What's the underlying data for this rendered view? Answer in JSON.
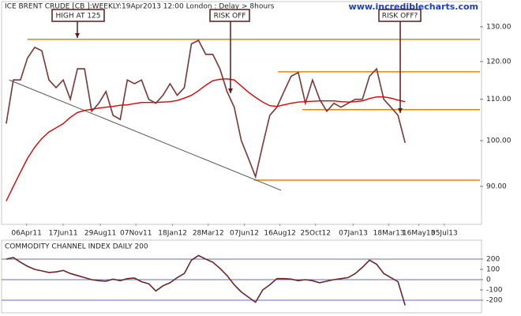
{
  "chart_data": [
    {
      "type": "line",
      "title": "ICE BRENT CRUDE [CB ]:WEEKLY:19Apr2013 12:00 London : Delay > 8hours",
      "source": "www.incrediblecharts.com",
      "log_y": true,
      "xlim": [
        "2011-02-19",
        "2013-09-13"
      ],
      "ylim": [
        82.6,
        134.8
      ],
      "yticks": [
        {
          "value": 90,
          "label": "90.00"
        },
        {
          "value": 100,
          "label": "100.00"
        },
        {
          "value": 110,
          "label": "110.00"
        },
        {
          "value": 120,
          "label": "120.00"
        },
        {
          "value": 130,
          "label": "130.00"
        }
      ],
      "xticks": [
        {
          "value": "2011-04-06",
          "label": "06Apr11"
        },
        {
          "value": "2011-06-17",
          "label": "17Jun11"
        },
        {
          "value": "2011-08-29",
          "label": "29Aug11"
        },
        {
          "value": "2011-11-07",
          "label": "07Nov11"
        },
        {
          "value": "2012-01-18",
          "label": "18Jan12"
        },
        {
          "value": "2012-03-28",
          "label": "28Mar12"
        },
        {
          "value": "2012-06-07",
          "label": "07Jun12"
        },
        {
          "value": "2012-08-16",
          "label": "16Aug12"
        },
        {
          "value": "2012-10-25",
          "label": "25Oct12"
        },
        {
          "value": "2013-01-07",
          "label": "07Jan13"
        },
        {
          "value": "2013-03-18",
          "label": "18Mar13"
        },
        {
          "value": "2013-05-16",
          "label": "16May13"
        },
        {
          "value": "2013-07-05",
          "label": "05Jul13"
        }
      ],
      "x": [
        "2011-02-25",
        "2011-03-11",
        "2011-03-25",
        "2011-04-08",
        "2011-04-22",
        "2011-05-06",
        "2011-05-20",
        "2011-06-03",
        "2011-06-17",
        "2011-07-01",
        "2011-07-15",
        "2011-07-29",
        "2011-08-12",
        "2011-08-26",
        "2011-09-09",
        "2011-09-23",
        "2011-10-07",
        "2011-10-21",
        "2011-11-04",
        "2011-11-18",
        "2011-12-02",
        "2011-12-16",
        "2011-12-30",
        "2012-01-13",
        "2012-01-27",
        "2012-02-10",
        "2012-02-24",
        "2012-03-09",
        "2012-03-23",
        "2012-04-06",
        "2012-04-20",
        "2012-05-04",
        "2012-05-18",
        "2012-06-01",
        "2012-06-15",
        "2012-06-29",
        "2012-07-13",
        "2012-07-27",
        "2012-08-10",
        "2012-08-24",
        "2012-09-07",
        "2012-09-21",
        "2012-10-05",
        "2012-10-19",
        "2012-11-02",
        "2012-11-16",
        "2012-11-30",
        "2012-12-14",
        "2012-12-28",
        "2013-01-11",
        "2013-01-25",
        "2013-02-08",
        "2013-02-22",
        "2013-03-08",
        "2013-03-22",
        "2013-04-05",
        "2013-04-19"
      ],
      "series": [
        {
          "color": "#7a3535",
          "values": [
            104,
            115,
            115,
            121,
            124,
            123,
            115,
            113,
            115,
            110,
            118,
            118,
            107,
            109,
            112,
            106,
            105,
            115,
            114,
            115,
            110,
            109,
            111,
            114,
            111,
            113,
            125,
            126,
            122,
            122,
            118,
            112,
            108,
            100,
            96,
            92,
            99,
            106,
            108,
            112,
            116,
            117,
            109,
            115,
            110,
            107,
            109,
            108,
            109,
            110,
            110,
            116,
            118,
            110,
            108,
            106,
            99.5
          ]
        },
        {
          "color": "#e00000",
          "values": [
            87,
            90,
            93,
            96,
            98.5,
            100.5,
            102,
            103,
            104,
            105.5,
            106.7,
            107.2,
            107.5,
            107.8,
            108,
            108.2,
            108.5,
            108.6,
            108.9,
            109.2,
            109.2,
            109.2,
            109.3,
            109.4,
            109.7,
            110.3,
            111,
            112.2,
            113.6,
            114.8,
            115.2,
            115.3,
            115,
            113.4,
            111.8,
            110.5,
            109.3,
            108.4,
            108.2,
            108.6,
            109,
            109.3,
            109.4,
            109.5,
            109.6,
            109.6,
            109.6,
            109.4,
            109.3,
            109.4,
            109.6,
            110.2,
            110.6,
            110.6,
            110.3,
            109.8,
            109.4
          ]
        }
      ],
      "hlines_color": "#f08000",
      "hlines": [
        {
          "value": 126.3,
          "start": "2011-04-08"
        },
        {
          "value": 117.2,
          "start": "2012-08-12"
        },
        {
          "value": 107.4,
          "start": "2012-09-29"
        },
        {
          "value": 91.3,
          "start": "2012-06-26"
        }
      ],
      "trendline": {
        "color": "#555555",
        "x": [
          "2011-03-03",
          "2012-08-18"
        ],
        "values": [
          115,
          89.2
        ]
      },
      "annotations": [
        "HIGH AT 125",
        "RISK OFF",
        "RISK OFF?"
      ]
    },
    {
      "type": "line",
      "title": "COMMODITY CHANNEL INDEX DAILY 200",
      "xlim": [
        "2011-02-19",
        "2013-09-13"
      ],
      "ylim": [
        -308,
        292
      ],
      "yticks": [
        -200,
        -100,
        0,
        100,
        200
      ],
      "levels": [
        200,
        0,
        -200
      ],
      "levels_color": "#6a6ad8",
      "x": [
        "2011-02-25",
        "2011-03-11",
        "2011-03-25",
        "2011-04-08",
        "2011-04-22",
        "2011-05-06",
        "2011-05-20",
        "2011-06-03",
        "2011-06-17",
        "2011-07-01",
        "2011-07-15",
        "2011-07-29",
        "2011-08-12",
        "2011-08-26",
        "2011-09-09",
        "2011-09-23",
        "2011-10-07",
        "2011-10-21",
        "2011-11-04",
        "2011-11-18",
        "2011-12-02",
        "2011-12-16",
        "2011-12-30",
        "2012-01-13",
        "2012-01-27",
        "2012-02-10",
        "2012-02-24",
        "2012-03-09",
        "2012-03-23",
        "2012-04-06",
        "2012-04-20",
        "2012-05-04",
        "2012-05-18",
        "2012-06-01",
        "2012-06-15",
        "2012-06-29",
        "2012-07-13",
        "2012-07-27",
        "2012-08-10",
        "2012-08-24",
        "2012-09-07",
        "2012-09-21",
        "2012-10-05",
        "2012-10-19",
        "2012-11-02",
        "2012-11-16",
        "2012-11-30",
        "2012-12-14",
        "2012-12-28",
        "2013-01-11",
        "2013-01-25",
        "2013-02-08",
        "2013-02-22",
        "2013-03-08",
        "2013-03-22",
        "2013-04-05",
        "2013-04-19"
      ],
      "series": [
        {
          "color": "#6b2626",
          "values": [
            200,
            215,
            170,
            130,
            100,
            85,
            70,
            75,
            90,
            60,
            40,
            20,
            0,
            -10,
            -15,
            5,
            -10,
            10,
            15,
            -20,
            -40,
            -110,
            -60,
            -30,
            20,
            60,
            190,
            235,
            200,
            170,
            110,
            40,
            -50,
            -120,
            -170,
            -220,
            -100,
            -50,
            10,
            10,
            5,
            -10,
            0,
            -10,
            -30,
            -15,
            0,
            10,
            20,
            60,
            120,
            190,
            150,
            60,
            20,
            -20,
            -250
          ]
        }
      ]
    }
  ]
}
